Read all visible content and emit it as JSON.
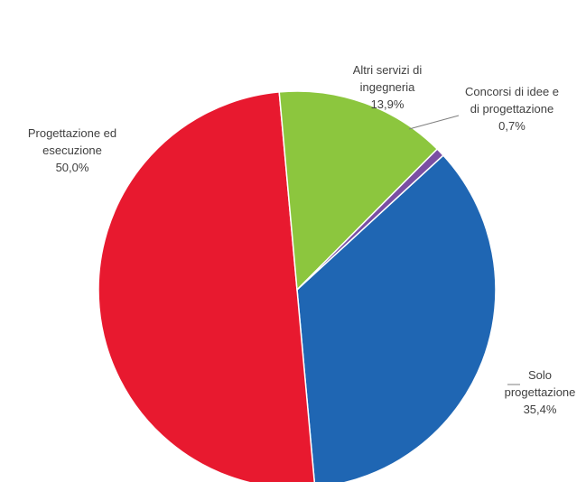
{
  "chart_data": {
    "type": "pie",
    "title": "",
    "slices": [
      {
        "label_lines": [
          "Solo",
          "progettazione"
        ],
        "percent_label": "35,4%",
        "value": 35.4,
        "color": "#1f66b3"
      },
      {
        "label_lines": [
          "Progettazione ed",
          "esecuzione"
        ],
        "percent_label": "50,0%",
        "value": 50.0,
        "color": "#e8192f"
      },
      {
        "label_lines": [
          "Altri servizi di",
          "ingegneria"
        ],
        "percent_label": "13,9%",
        "value": 13.9,
        "color": "#8cc63e"
      },
      {
        "label_lines": [
          "Concorsi di idee e",
          "di progettazione"
        ],
        "percent_label": "0,7%",
        "value": 0.7,
        "color": "#7a4ea3"
      }
    ],
    "legend": "none"
  }
}
